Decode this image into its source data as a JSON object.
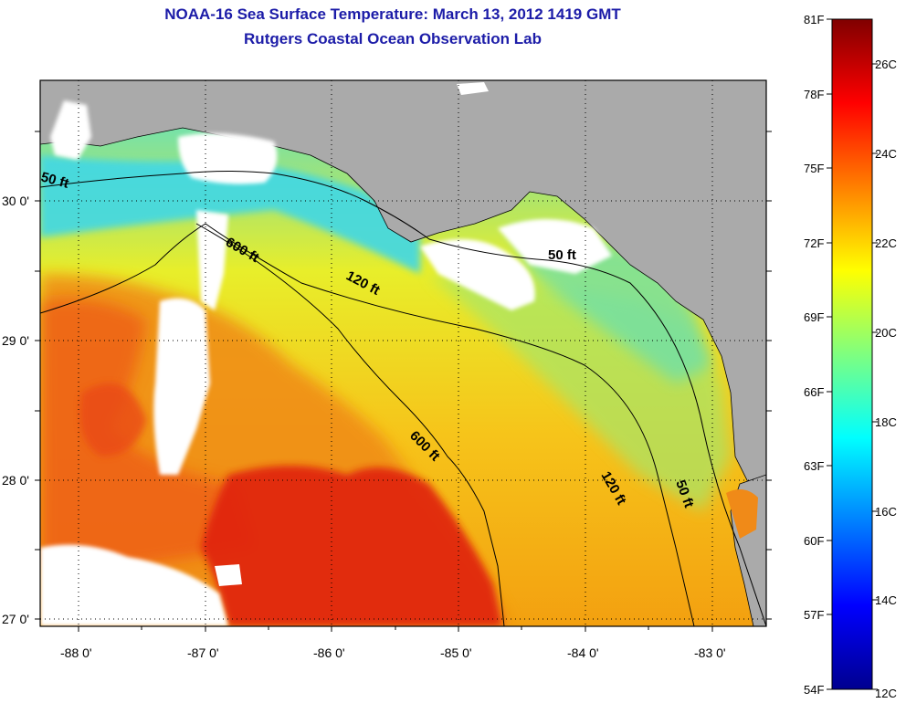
{
  "title": {
    "line1": "NOAA-16 Sea Surface Temperature:  March 13, 2012 1419 GMT",
    "line2": "Rutgers Coastal Ocean Observation Lab"
  },
  "axes": {
    "lon_labels": [
      "-88 0'",
      "-87 0'",
      "-86 0'",
      "-85 0'",
      "-84 0'",
      "-83 0'"
    ],
    "lat_labels": [
      "30 0'",
      "29 0'",
      "28 0'",
      "27 0'"
    ]
  },
  "contours": {
    "label_50_west": "50 ft",
    "label_50_east": "50 ft",
    "label_50_se": "50 ft",
    "label_120_north": "120 ft",
    "label_120_south": "120 ft",
    "label_600_north": "600 ft",
    "label_600_south": "600 ft"
  },
  "colorbar": {
    "fahrenheit": [
      "81F",
      "78F",
      "75F",
      "72F",
      "69F",
      "66F",
      "63F",
      "60F",
      "57F",
      "54F"
    ],
    "celsius": [
      "26C",
      "24C",
      "22C",
      "20C",
      "18C",
      "16C",
      "14C",
      "12C"
    ]
  },
  "colors": {
    "land": "#aaaaaa",
    "cloud": "#ffffff",
    "title": "#1c1ca8"
  }
}
